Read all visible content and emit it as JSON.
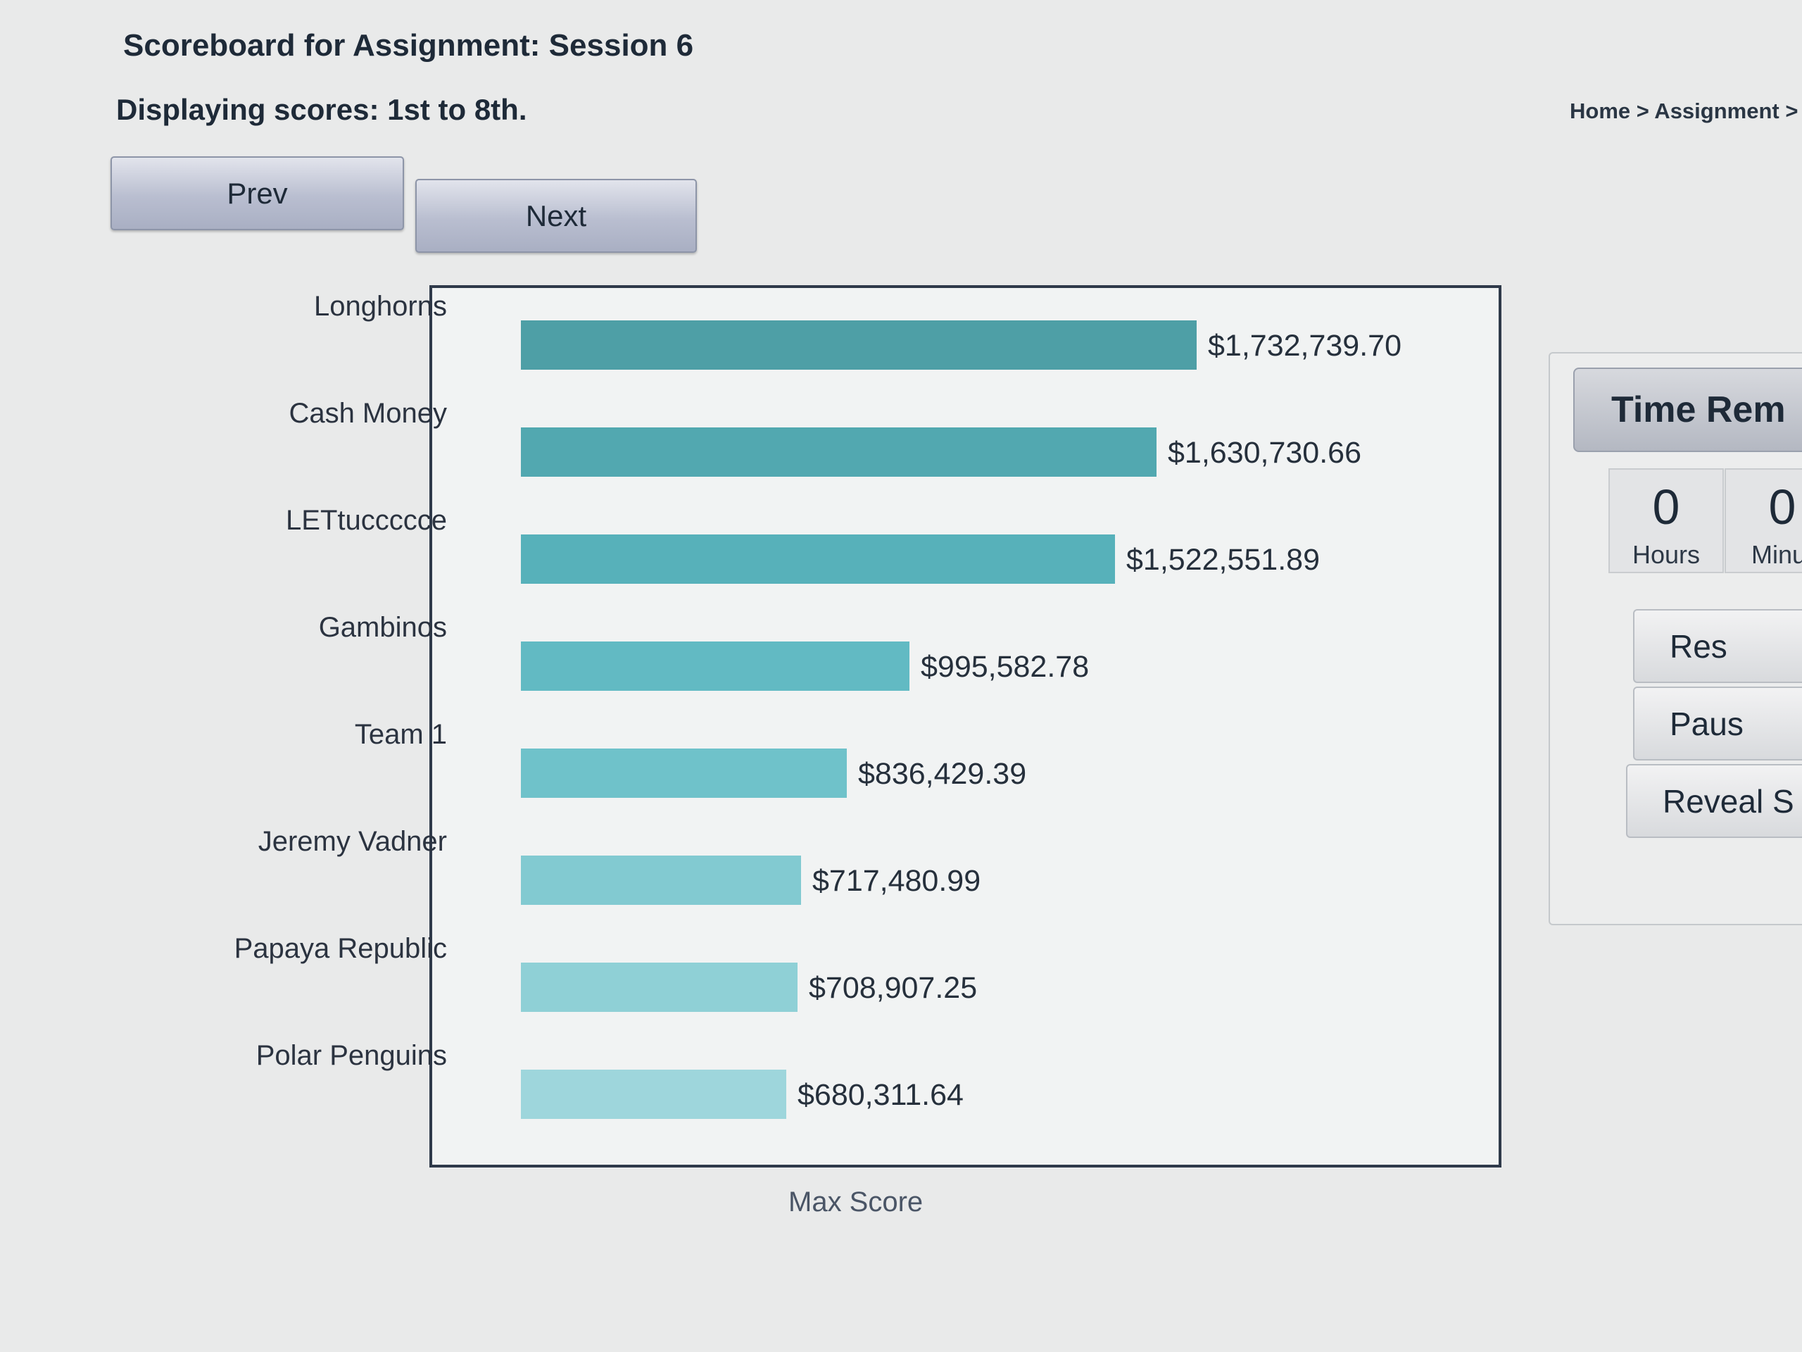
{
  "header": {
    "title": "Scoreboard for Assignment: Session 6",
    "range": "Displaying scores: 1st to 8th.",
    "breadcrumb": "Home > Assignment >"
  },
  "nav": {
    "prev_label": "Prev",
    "next_label": "Next"
  },
  "chart_data": {
    "type": "bar",
    "orientation": "horizontal",
    "categories": [
      "Longhorns",
      "Cash Money",
      "LETtuccccce",
      "Gambinos",
      "Team 1",
      "Jeremy Vadner",
      "Papaya Republic",
      "Polar Penguins"
    ],
    "values": [
      1732739.7,
      1630730.66,
      1522551.89,
      995582.78,
      836429.39,
      717480.99,
      708907.25,
      680311.64
    ],
    "value_labels": [
      "$1,732,739.70",
      "$1,630,730.66",
      "$1,522,551.89",
      "$995,582.78",
      "$836,429.39",
      "$717,480.99",
      "$708,907.25",
      "$680,311.64"
    ],
    "colors": [
      "#4e9fa6",
      "#52a8b0",
      "#57b1ba",
      "#62bac3",
      "#6fc2ca",
      "#82cad1",
      "#8fd0d6",
      "#9ed6dc"
    ],
    "xlabel": "Max Score",
    "grid": false
  },
  "timer": {
    "title": "Time Rem",
    "hours": {
      "value": "0",
      "unit": "Hours"
    },
    "minutes": {
      "value": "0",
      "unit": "Minut"
    }
  },
  "actions": {
    "reset": "Res",
    "pause": "Paus",
    "reveal": "Reveal S"
  }
}
